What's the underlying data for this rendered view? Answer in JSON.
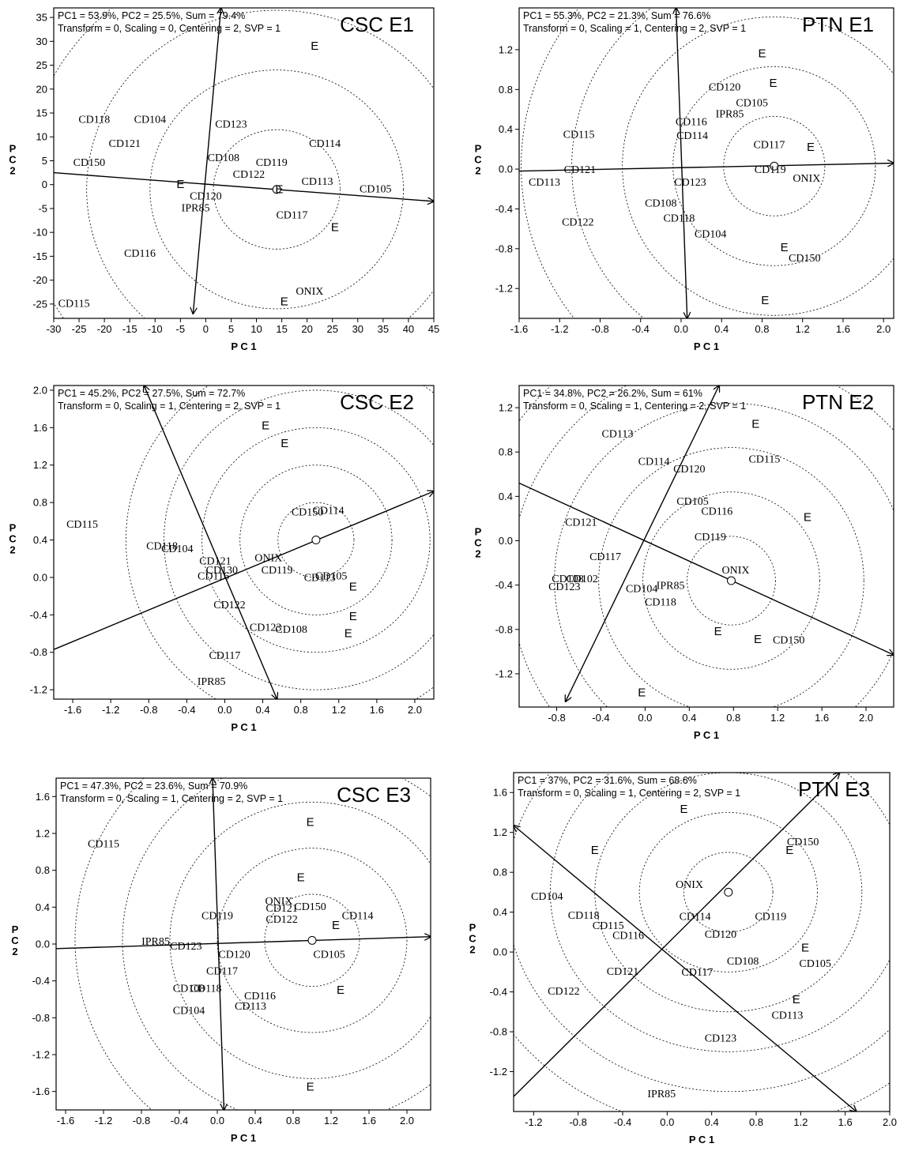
{
  "colors": {
    "ink": "#000000",
    "background": "#ffffff"
  },
  "chart_data": [
    {
      "type": "scatter",
      "title": "CSC E1",
      "info_line1": "PC1 = 53.9%, PC2 = 25.5%, Sum = 79.4%",
      "info_line2": "Transform = 0, Scaling = 0, Centering = 2, SVP = 1",
      "xlabel": "P C 1",
      "ylabel": "P C 2",
      "xlim": [
        -30,
        45
      ],
      "ylim": [
        -28,
        37
      ],
      "xticks": [
        -30,
        -25,
        -20,
        -15,
        -10,
        -5,
        0,
        5,
        10,
        15,
        20,
        25,
        30,
        35,
        40,
        45
      ],
      "yticks": [
        -25,
        -20,
        -15,
        -10,
        -5,
        0,
        5,
        10,
        15,
        20,
        25,
        30,
        35
      ],
      "genotypes": [
        {
          "label": "CD118",
          "x": -22,
          "y": 13.5
        },
        {
          "label": "CD104",
          "x": -11,
          "y": 13.5
        },
        {
          "label": "CD121",
          "x": -16,
          "y": 8.5
        },
        {
          "label": "CD150",
          "x": -23,
          "y": 4.5
        },
        {
          "label": "CD123",
          "x": 5,
          "y": 12.5
        },
        {
          "label": "CD108",
          "x": 3.5,
          "y": 5.5
        },
        {
          "label": "CD119",
          "x": 13,
          "y": 4.5
        },
        {
          "label": "CD122",
          "x": 8.5,
          "y": 2
        },
        {
          "label": "CD114",
          "x": 23.5,
          "y": 8.5
        },
        {
          "label": "CD113",
          "x": 22,
          "y": 0.5
        },
        {
          "label": "CD105",
          "x": 33.5,
          "y": -1
        },
        {
          "label": "CD120",
          "x": 0,
          "y": -2.5
        },
        {
          "label": "IPR85",
          "x": -2,
          "y": -5
        },
        {
          "label": "CD117",
          "x": 17,
          "y": -6.5
        },
        {
          "label": "CD116",
          "x": -13,
          "y": -14.5
        },
        {
          "label": "ONIX",
          "x": 20.5,
          "y": -22.5
        },
        {
          "label": "CD115",
          "x": -26,
          "y": -25
        }
      ],
      "environments": [
        {
          "label": "E",
          "x": -5,
          "y": 0
        },
        {
          "label": "E",
          "x": 14.5,
          "y": -1
        },
        {
          "label": "E",
          "x": 21.5,
          "y": 29
        },
        {
          "label": "E",
          "x": 25.5,
          "y": -9
        },
        {
          "label": "E",
          "x": 15.5,
          "y": -24.5
        }
      ],
      "ideal_point": [
        14,
        -1
      ],
      "axis_line": [
        [
          -30,
          2.5
        ],
        [
          45,
          -3.5
        ]
      ],
      "perpendicular": [
        [
          -2.5,
          -27
        ],
        [
          3,
          37
        ]
      ],
      "circle_radii": [
        12.5,
        25,
        37.5,
        50,
        62.5
      ]
    },
    {
      "type": "scatter",
      "title": "PTN E1",
      "info_line1": "PC1 = 55.3%, PC2 = 21.3%, Sum = 76.6%",
      "info_line2": "Transform = 0, Scaling = 1, Centering = 2, SVP = 1",
      "xlabel": "P C 1",
      "ylabel": "P C 2",
      "xlim": [
        -1.6,
        2.1
      ],
      "ylim": [
        -1.5,
        1.62
      ],
      "xticks": [
        -1.6,
        -1.2,
        -0.8,
        -0.4,
        0.0,
        0.4,
        0.8,
        1.2,
        1.6,
        2.0
      ],
      "yticks": [
        -1.2,
        -0.8,
        -0.4,
        0.0,
        0.4,
        0.8,
        1.2
      ],
      "genotypes": [
        {
          "label": "CD120",
          "x": 0.43,
          "y": 0.82
        },
        {
          "label": "CD105",
          "x": 0.7,
          "y": 0.66
        },
        {
          "label": "IPR85",
          "x": 0.48,
          "y": 0.55
        },
        {
          "label": "CD116",
          "x": 0.1,
          "y": 0.47
        },
        {
          "label": "CD114",
          "x": 0.11,
          "y": 0.33
        },
        {
          "label": "CD115",
          "x": -1.01,
          "y": 0.34
        },
        {
          "label": "CD117",
          "x": 0.87,
          "y": 0.24
        },
        {
          "label": "CD119",
          "x": 0.88,
          "y": -0.01
        },
        {
          "label": "CD121",
          "x": -1.0,
          "y": -0.01
        },
        {
          "label": "CD113",
          "x": -1.35,
          "y": -0.14
        },
        {
          "label": "CD123",
          "x": 0.09,
          "y": -0.14
        },
        {
          "label": "ONIX",
          "x": 1.24,
          "y": -0.1
        },
        {
          "label": "CD108",
          "x": -0.2,
          "y": -0.35
        },
        {
          "label": "CD118",
          "x": -0.02,
          "y": -0.5
        },
        {
          "label": "CD122",
          "x": -1.02,
          "y": -0.54
        },
        {
          "label": "CD104",
          "x": 0.29,
          "y": -0.66
        },
        {
          "label": "CD150",
          "x": 1.22,
          "y": -0.9
        }
      ],
      "environments": [
        {
          "label": "E",
          "x": 0.8,
          "y": 1.16
        },
        {
          "label": "E",
          "x": 0.91,
          "y": 0.86
        },
        {
          "label": "E",
          "x": 1.28,
          "y": 0.22
        },
        {
          "label": "E",
          "x": 1.02,
          "y": -0.79
        },
        {
          "label": "E",
          "x": 0.83,
          "y": -1.32
        }
      ],
      "ideal_point": [
        0.92,
        0.03
      ],
      "axis_line": [
        [
          -1.6,
          -0.02
        ],
        [
          2.1,
          0.06
        ]
      ],
      "perpendicular": [
        [
          -0.05,
          1.62
        ],
        [
          0.06,
          -1.5
        ]
      ],
      "circle_radii": [
        0.5,
        1.0,
        1.5,
        2.0,
        2.5
      ]
    },
    {
      "type": "scatter",
      "title": "CSC E2",
      "info_line1": "PC1 = 45.2%, PC2 = 27.5%, Sum = 72.7%",
      "info_line2": "Transform = 0, Scaling = 1, Centering = 2, SVP = 1",
      "xlabel": "P C 1",
      "ylabel": "P C 2",
      "xlim": [
        -1.8,
        2.2
      ],
      "ylim": [
        -1.3,
        2.05
      ],
      "xticks": [
        -1.6,
        -1.2,
        -0.8,
        -0.4,
        0.0,
        0.4,
        0.8,
        1.2,
        1.6,
        2.0
      ],
      "yticks": [
        -1.2,
        -0.8,
        -0.4,
        0.0,
        0.4,
        0.8,
        1.2,
        1.6,
        2.0
      ],
      "genotypes": [
        {
          "label": "CD115",
          "x": -1.5,
          "y": 0.56
        },
        {
          "label": "CD150",
          "x": 0.87,
          "y": 0.69
        },
        {
          "label": "CD114",
          "x": 1.09,
          "y": 0.71
        },
        {
          "label": "CD118",
          "x": -0.66,
          "y": 0.33
        },
        {
          "label": "CD104",
          "x": -0.5,
          "y": 0.3
        },
        {
          "label": "CD121",
          "x": -0.1,
          "y": 0.17
        },
        {
          "label": "ONIX",
          "x": 0.46,
          "y": 0.2
        },
        {
          "label": "CD130",
          "x": -0.03,
          "y": 0.07
        },
        {
          "label": "CD119",
          "x": 0.55,
          "y": 0.07
        },
        {
          "label": "CD116",
          "x": -0.12,
          "y": 0.01
        },
        {
          "label": "CD105",
          "x": 1.12,
          "y": 0.01
        },
        {
          "label": "CD113",
          "x": 1.0,
          "y": -0.01
        },
        {
          "label": "CD122",
          "x": 0.05,
          "y": -0.3
        },
        {
          "label": "CD123",
          "x": 0.43,
          "y": -0.54
        },
        {
          "label": "CD108",
          "x": 0.7,
          "y": -0.56
        },
        {
          "label": "CD117",
          "x": 0.0,
          "y": -0.84
        },
        {
          "label": "IPR85",
          "x": -0.14,
          "y": -1.12
        }
      ],
      "environments": [
        {
          "label": "E",
          "x": 0.43,
          "y": 1.62
        },
        {
          "label": "E",
          "x": 0.63,
          "y": 1.43
        },
        {
          "label": "E",
          "x": 1.35,
          "y": -0.1
        },
        {
          "label": "E",
          "x": 1.35,
          "y": -0.42
        },
        {
          "label": "E",
          "x": 1.3,
          "y": -0.6
        }
      ],
      "ideal_point": [
        0.96,
        0.4
      ],
      "axis_line": [
        [
          -1.8,
          -0.77
        ],
        [
          2.2,
          0.92
        ]
      ],
      "perpendicular": [
        [
          -0.85,
          2.05
        ],
        [
          0.55,
          -1.3
        ]
      ],
      "circle_radii": [
        0.4,
        0.8,
        1.2,
        1.6,
        2.0
      ]
    },
    {
      "type": "scatter",
      "title": "PTN E2",
      "info_line1": "PC1 = 34.8%, PC2 = 26.2%, Sum = 61%",
      "info_line2": "Transform = 0, Scaling = 1, Centering = 2, SVP = 1",
      "xlabel": "P C 1",
      "ylabel": "P C 2",
      "xlim": [
        -1.14,
        2.25
      ],
      "ylim": [
        -1.5,
        1.4
      ],
      "xticks": [
        -0.8,
        -0.4,
        0.0,
        0.4,
        0.8,
        1.2,
        1.6,
        2.0
      ],
      "yticks": [
        -1.2,
        -0.8,
        -0.4,
        0.0,
        0.4,
        0.8,
        1.2
      ],
      "genotypes": [
        {
          "label": "CD113",
          "x": -0.25,
          "y": 0.96
        },
        {
          "label": "CD114",
          "x": 0.08,
          "y": 0.71
        },
        {
          "label": "CD120",
          "x": 0.4,
          "y": 0.64
        },
        {
          "label": "CD115",
          "x": 1.08,
          "y": 0.73
        },
        {
          "label": "CD105",
          "x": 0.43,
          "y": 0.35
        },
        {
          "label": "CD116",
          "x": 0.65,
          "y": 0.26
        },
        {
          "label": "CD121",
          "x": -0.58,
          "y": 0.16
        },
        {
          "label": "CD119",
          "x": 0.59,
          "y": 0.03
        },
        {
          "label": "CD117",
          "x": -0.36,
          "y": -0.15
        },
        {
          "label": "ONIX",
          "x": 0.82,
          "y": -0.27
        },
        {
          "label": "CD108",
          "x": -0.7,
          "y": -0.35
        },
        {
          "label": "CD102",
          "x": -0.57,
          "y": -0.35
        },
        {
          "label": "CD123",
          "x": -0.73,
          "y": -0.42
        },
        {
          "label": "CD104",
          "x": -0.03,
          "y": -0.44
        },
        {
          "label": "IPR85",
          "x": 0.23,
          "y": -0.41
        },
        {
          "label": "CD118",
          "x": 0.14,
          "y": -0.56
        },
        {
          "label": "CD150",
          "x": 1.3,
          "y": -0.9
        }
      ],
      "environments": [
        {
          "label": "E",
          "x": 1.0,
          "y": 1.05
        },
        {
          "label": "E",
          "x": 1.47,
          "y": 0.21
        },
        {
          "label": "E",
          "x": 0.66,
          "y": -0.82
        },
        {
          "label": "E",
          "x": 1.02,
          "y": -0.89
        },
        {
          "label": "E",
          "x": -0.03,
          "y": -1.37
        }
      ],
      "ideal_point": [
        0.78,
        -0.36
      ],
      "axis_line": [
        [
          -1.14,
          0.52
        ],
        [
          2.25,
          -1.03
        ]
      ],
      "perpendicular": [
        [
          -0.72,
          -1.45
        ],
        [
          0.67,
          1.4
        ]
      ],
      "circle_radii": [
        0.4,
        0.8,
        1.2,
        1.6,
        2.0,
        2.4
      ]
    },
    {
      "type": "scatter",
      "title": "CSC E3",
      "info_line1": "PC1 = 47.3%, PC2 = 23.6%, Sum = 70.9%",
      "info_line2": "Transform = 0, Scaling = 1, Centering = 2, SVP = 1",
      "xlabel": "P C 1",
      "ylabel": "P C 2",
      "xlim": [
        -1.7,
        2.25
      ],
      "ylim": [
        -1.8,
        1.8
      ],
      "xticks": [
        -1.6,
        -1.2,
        -0.8,
        -0.4,
        0.0,
        0.4,
        0.8,
        1.2,
        1.6,
        2.0
      ],
      "yticks": [
        -1.6,
        -1.2,
        -0.8,
        -0.4,
        0.0,
        0.4,
        0.8,
        1.2,
        1.6
      ],
      "genotypes": [
        {
          "label": "CD115",
          "x": -1.2,
          "y": 1.08
        },
        {
          "label": "ONIX",
          "x": 0.65,
          "y": 0.46
        },
        {
          "label": "CD121",
          "x": 0.68,
          "y": 0.38
        },
        {
          "label": "CD150",
          "x": 0.98,
          "y": 0.4
        },
        {
          "label": "CD119",
          "x": 0.0,
          "y": 0.3
        },
        {
          "label": "CD122",
          "x": 0.68,
          "y": 0.26
        },
        {
          "label": "CD114",
          "x": 1.48,
          "y": 0.3
        },
        {
          "label": "IPR85",
          "x": -0.65,
          "y": 0.02
        },
        {
          "label": "CD123",
          "x": -0.33,
          "y": -0.03
        },
        {
          "label": "CD120",
          "x": 0.18,
          "y": -0.12
        },
        {
          "label": "CD105",
          "x": 1.18,
          "y": -0.12
        },
        {
          "label": "CD117",
          "x": 0.05,
          "y": -0.3
        },
        {
          "label": "CD108",
          "x": -0.3,
          "y": -0.49
        },
        {
          "label": "CD118",
          "x": -0.12,
          "y": -0.49
        },
        {
          "label": "CD116",
          "x": 0.45,
          "y": -0.57
        },
        {
          "label": "CD113",
          "x": 0.35,
          "y": -0.68
        },
        {
          "label": "CD104",
          "x": -0.3,
          "y": -0.73
        }
      ],
      "environments": [
        {
          "label": "E",
          "x": 0.98,
          "y": 1.32
        },
        {
          "label": "E",
          "x": 0.88,
          "y": 0.72
        },
        {
          "label": "E",
          "x": 1.25,
          "y": 0.2
        },
        {
          "label": "E",
          "x": 1.3,
          "y": -0.5
        },
        {
          "label": "E",
          "x": 0.98,
          "y": -1.55
        }
      ],
      "ideal_point": [
        1.0,
        0.04
      ],
      "axis_line": [
        [
          -1.7,
          -0.05
        ],
        [
          2.25,
          0.08
        ]
      ],
      "perpendicular": [
        [
          -0.05,
          1.8
        ],
        [
          0.07,
          -1.8
        ]
      ],
      "circle_radii": [
        0.5,
        1.0,
        1.5,
        2.0,
        2.5
      ]
    },
    {
      "type": "scatter",
      "title": "PTN E3",
      "info_line1": "PC1 = 37%, PC2 = 31.6%, Sum = 68.6%",
      "info_line2": "Transform = 0, Scaling = 1, Centering = 2, SVP = 1",
      "xlabel": "P C 1",
      "ylabel": "P C 2",
      "xlim": [
        -1.38,
        2.0
      ],
      "ylim": [
        -1.6,
        1.8
      ],
      "xticks": [
        -1.2,
        -0.8,
        -0.4,
        0.0,
        0.4,
        0.8,
        1.2,
        1.6,
        2.0
      ],
      "yticks": [
        -1.2,
        -0.8,
        -0.4,
        0.0,
        0.4,
        0.8,
        1.2,
        1.6
      ],
      "genotypes": [
        {
          "label": "CD150",
          "x": 1.22,
          "y": 1.1
        },
        {
          "label": "ONIX",
          "x": 0.2,
          "y": 0.67
        },
        {
          "label": "CD104",
          "x": -1.08,
          "y": 0.55
        },
        {
          "label": "CD118",
          "x": -0.75,
          "y": 0.36
        },
        {
          "label": "CD115",
          "x": -0.53,
          "y": 0.26
        },
        {
          "label": "CD114",
          "x": 0.25,
          "y": 0.35
        },
        {
          "label": "CD119",
          "x": 0.93,
          "y": 0.35
        },
        {
          "label": "CD116",
          "x": -0.35,
          "y": 0.16
        },
        {
          "label": "CD120",
          "x": 0.48,
          "y": 0.17
        },
        {
          "label": "CD108",
          "x": 0.68,
          "y": -0.1
        },
        {
          "label": "CD105",
          "x": 1.33,
          "y": -0.12
        },
        {
          "label": "CD121",
          "x": -0.4,
          "y": -0.2
        },
        {
          "label": "CD117",
          "x": 0.27,
          "y": -0.21
        },
        {
          "label": "CD122",
          "x": -0.93,
          "y": -0.4
        },
        {
          "label": "CD113",
          "x": 1.08,
          "y": -0.64
        },
        {
          "label": "CD123",
          "x": 0.48,
          "y": -0.87
        },
        {
          "label": "IPR85",
          "x": -0.05,
          "y": -1.43
        }
      ],
      "environments": [
        {
          "label": "E",
          "x": 0.15,
          "y": 1.43
        },
        {
          "label": "E",
          "x": -0.65,
          "y": 1.02
        },
        {
          "label": "E",
          "x": 1.1,
          "y": 1.02
        },
        {
          "label": "E",
          "x": 1.24,
          "y": 0.04
        },
        {
          "label": "E",
          "x": 1.16,
          "y": -0.48
        }
      ],
      "ideal_point": [
        0.55,
        0.6
      ],
      "axis_line": [
        [
          -1.38,
          -1.45
        ],
        [
          1.55,
          1.8
        ]
      ],
      "perpendicular": [
        [
          -1.38,
          1.27
        ],
        [
          1.7,
          -1.6
        ]
      ],
      "circle_radii": [
        0.4,
        0.8,
        1.2,
        1.6,
        2.0,
        2.4
      ]
    }
  ]
}
